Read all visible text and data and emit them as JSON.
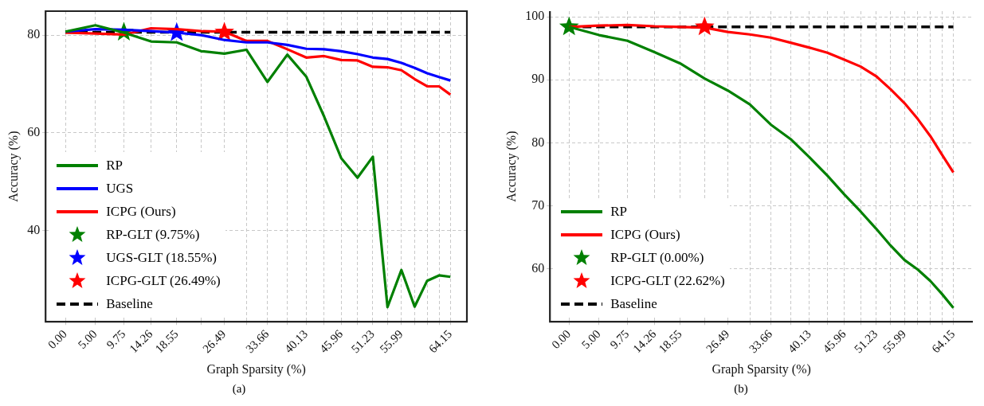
{
  "chart_data": [
    {
      "type": "line",
      "xlabel": "Graph Sparsity (%)",
      "ylabel": "Accuracy (%)",
      "annotations": [
        "(a)"
      ],
      "grid": true,
      "legend": "bottom left",
      "x": [
        0,
        5,
        9.75,
        14.26,
        18.55,
        22.62,
        26.49,
        30.17,
        33.66,
        36.98,
        40.13,
        43.12,
        45.96,
        48.67,
        51.23,
        53.67,
        55.99,
        58.19,
        60.28,
        62.26,
        64.15
      ],
      "xlim": [
        -3.3,
        66.9
      ],
      "xticks": [
        {
          "value": 0,
          "label": "0.00"
        },
        {
          "value": 5,
          "label": "5.00"
        },
        9.75,
        14.26,
        18.55,
        {
          "value": 22.62,
          "label": null
        },
        26.49,
        {
          "value": 30.17,
          "label": null
        },
        33.66,
        {
          "value": 36.98,
          "label": null
        },
        40.13,
        {
          "value": 43.12,
          "label": null
        },
        45.96,
        {
          "value": 48.67,
          "label": null
        },
        51.23,
        {
          "value": 53.67,
          "label": null
        },
        55.99,
        {
          "value": 58.19,
          "label": null
        },
        {
          "value": 60.28,
          "label": null
        },
        {
          "value": 62.26,
          "label": null
        },
        64.15
      ],
      "ylim": [
        21.3,
        84.9
      ],
      "yticks": [
        40,
        60,
        80
      ],
      "ref_lines": [
        {
          "axis": "y",
          "value": 80.6,
          "label": "Baseline",
          "color": "#000000",
          "line_style": "dashed"
        }
      ],
      "series": [
        {
          "name": "RP",
          "color": "#008000",
          "marker": "none",
          "values": [
            80.7,
            82.0,
            80.5,
            78.7,
            78.5,
            76.7,
            76.2,
            77.0,
            70.4,
            76.0,
            71.5,
            63.3,
            54.8,
            50.8,
            55.1,
            24.3,
            31.9,
            24.4,
            29.7,
            30.8,
            30.5
          ]
        },
        {
          "name": "UGS",
          "color": "#0000ff",
          "marker": "none",
          "values": [
            80.7,
            81.2,
            81.1,
            80.8,
            80.5,
            80.0,
            79.0,
            78.5,
            78.5,
            78.0,
            77.2,
            77.1,
            76.7,
            76.1,
            75.4,
            75.1,
            74.3,
            73.3,
            72.2,
            71.4,
            70.7
          ]
        },
        {
          "name": "ICPG (Ours)",
          "color": "#ff0000",
          "marker": "none",
          "values": [
            80.5,
            80.3,
            80.1,
            81.4,
            81.2,
            80.8,
            80.7,
            78.8,
            78.8,
            77.1,
            75.4,
            75.7,
            74.9,
            74.8,
            73.5,
            73.4,
            72.8,
            71.0,
            69.5,
            69.5,
            67.8
          ]
        },
        {
          "name": "RP-GLT (9.75%)",
          "type": "scatter",
          "color": "#008000",
          "marker": "star",
          "x": [
            9.75
          ],
          "values": [
            80.6
          ]
        },
        {
          "name": "UGS-GLT (18.55%)",
          "type": "scatter",
          "color": "#0000ff",
          "marker": "star",
          "x": [
            18.55
          ],
          "values": [
            80.5
          ]
        },
        {
          "name": "ICPG-GLT (26.49%)",
          "type": "scatter",
          "color": "#ff0000",
          "marker": "star",
          "x": [
            26.49
          ],
          "values": [
            80.6
          ]
        }
      ]
    },
    {
      "type": "line",
      "xlabel": "Graph Sparsity (%)",
      "ylabel": "Accuracy (%)",
      "annotations": [
        "(b)"
      ],
      "grid": true,
      "legend": "bottom left",
      "x": [
        0,
        5,
        9.75,
        14.26,
        18.55,
        22.62,
        26.49,
        30.17,
        33.66,
        36.98,
        40.13,
        43.12,
        45.96,
        48.67,
        51.23,
        53.67,
        55.99,
        58.19,
        60.28,
        62.26,
        64.15
      ],
      "xlim": [
        -3.2,
        67.4
      ],
      "xticks": [
        {
          "value": 0,
          "label": "0.00"
        },
        {
          "value": 5,
          "label": "5.00"
        },
        9.75,
        14.26,
        18.55,
        {
          "value": 22.62,
          "label": null
        },
        26.49,
        {
          "value": 30.17,
          "label": null
        },
        33.66,
        {
          "value": 36.98,
          "label": null
        },
        40.13,
        {
          "value": 43.12,
          "label": null
        },
        45.96,
        {
          "value": 48.67,
          "label": null
        },
        51.23,
        {
          "value": 53.67,
          "label": null
        },
        55.99,
        {
          "value": 58.19,
          "label": null
        },
        {
          "value": 60.28,
          "label": null
        },
        {
          "value": 62.26,
          "label": null
        },
        64.15
      ],
      "ylim": [
        51.6,
        100.9
      ],
      "yticks": [
        60,
        70,
        80,
        90,
        100
      ],
      "ref_lines": [
        {
          "axis": "y",
          "value": 98.4,
          "label": "Baseline",
          "color": "#000000",
          "line_style": "dashed"
        }
      ],
      "series": [
        {
          "name": "RP",
          "color": "#008000",
          "marker": "none",
          "values": [
            98.4,
            97.1,
            96.2,
            94.4,
            92.6,
            90.2,
            88.3,
            86.1,
            82.9,
            80.6,
            77.7,
            74.8,
            71.8,
            69.1,
            66.4,
            63.7,
            61.4,
            59.9,
            58.1,
            56.0,
            53.8
          ]
        },
        {
          "name": "ICPG (Ours)",
          "color": "#ff0000",
          "marker": "none",
          "values": [
            98.4,
            98.6,
            98.7,
            98.5,
            98.4,
            98.3,
            97.6,
            97.2,
            96.7,
            95.9,
            95.1,
            94.3,
            93.2,
            92.1,
            90.6,
            88.5,
            86.3,
            83.8,
            81.1,
            78.1,
            75.3
          ]
        },
        {
          "name": "RP-GLT (0.00%)",
          "type": "scatter",
          "color": "#008000",
          "marker": "star",
          "x": [
            0
          ],
          "values": [
            98.4
          ]
        },
        {
          "name": "ICPG-GLT (22.62%)",
          "type": "scatter",
          "color": "#ff0000",
          "marker": "star",
          "x": [
            22.62
          ],
          "values": [
            98.4
          ]
        }
      ]
    }
  ]
}
